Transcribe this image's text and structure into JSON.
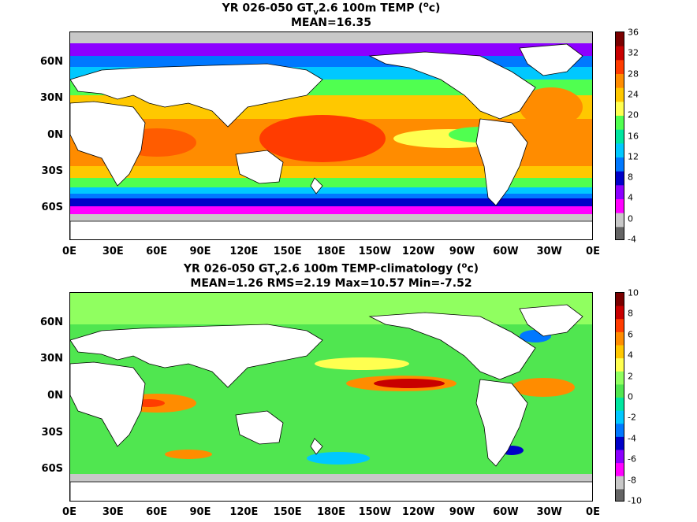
{
  "panels": [
    {
      "title_prefix": "YR 026-050 GT",
      "title_sub": "v",
      "title_mid": "2.6 100m TEMP (",
      "title_sup": "o",
      "title_end": "c)",
      "stats": "MEAN=16.35",
      "colorbar_ticks": [
        "36",
        "32",
        "28",
        "24",
        "20",
        "16",
        "12",
        "8",
        "4",
        "0",
        "-4"
      ],
      "colorbar_colors": [
        "#7a0000",
        "#c80000",
        "#ff3c00",
        "#ff8c00",
        "#ffc800",
        "#ffff50",
        "#50ff50",
        "#00e6a0",
        "#00c8ff",
        "#0078ff",
        "#0000c8",
        "#8c00ff",
        "#ff00ff",
        "#c8c8c8",
        "#646464"
      ]
    },
    {
      "title_prefix": "YR 026-050 GT",
      "title_sub": "v",
      "title_mid": "2.6 100m TEMP-climatology (",
      "title_sup": "o",
      "title_end": "c)",
      "stats": "MEAN=1.26   RMS=2.19   Max=10.57   Min=-7.52",
      "colorbar_ticks": [
        "10",
        "8",
        "6",
        "4",
        "2",
        "0",
        "-2",
        "-4",
        "-6",
        "-8",
        "-10"
      ],
      "colorbar_colors": [
        "#7a0000",
        "#c80000",
        "#ff3c00",
        "#ff8c00",
        "#ffc800",
        "#ffff50",
        "#90ff60",
        "#50e650",
        "#00e6a0",
        "#00c8ff",
        "#0078ff",
        "#0000c8",
        "#8c00ff",
        "#ff00ff",
        "#c8c8c8",
        "#646464"
      ]
    }
  ],
  "lat_labels": [
    "60N",
    "30N",
    "0N",
    "30S",
    "60S"
  ],
  "lon_labels": [
    "0E",
    "30E",
    "60E",
    "90E",
    "120E",
    "150E",
    "180E",
    "150W",
    "120W",
    "90W",
    "60W",
    "30W",
    "0E"
  ]
}
